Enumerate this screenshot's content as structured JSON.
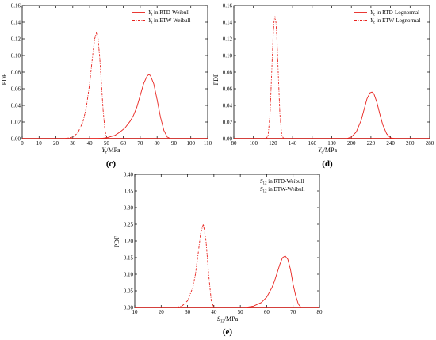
{
  "colors": {
    "series": "#e8231e",
    "axis": "#000000",
    "background": "#ffffff"
  },
  "panels": [
    {
      "label": "(c)"
    },
    {
      "label": "(d)"
    },
    {
      "label": "(e)"
    }
  ],
  "chart_data": [
    {
      "type": "line",
      "panel": "(c)",
      "ylabel": "PDF",
      "xlabel_main": "Y",
      "xlabel_sub": "t",
      "xlabel_unit": "/MPa",
      "xlim": [
        0,
        110
      ],
      "ylim": [
        0,
        0.16
      ],
      "xticks": [
        "0",
        "10",
        "20",
        "30",
        "40",
        "50",
        "60",
        "70",
        "80",
        "90",
        "100",
        "110"
      ],
      "yticks": [
        "0.00",
        "0.02",
        "0.04",
        "0.06",
        "0.08",
        "0.10",
        "0.12",
        "0.14",
        "0.16"
      ],
      "legend_position": "top-right",
      "series": [
        {
          "name_var": "Y",
          "name_sub": "t",
          "name_text": " in RTD-Weibull",
          "style": "solid",
          "x": [
            40,
            45,
            50,
            55,
            58,
            61,
            64,
            66,
            68,
            70,
            72,
            74,
            75,
            76,
            78,
            80,
            82,
            84,
            86,
            88
          ],
          "y": [
            0,
            0,
            0.001,
            0.004,
            0.008,
            0.013,
            0.021,
            0.028,
            0.038,
            0.052,
            0.066,
            0.075,
            0.077,
            0.076,
            0.066,
            0.047,
            0.026,
            0.01,
            0.002,
            0
          ]
        },
        {
          "name_var": "Y",
          "name_sub": "t",
          "name_text": " in ETW-Weibull",
          "style": "dash",
          "x": [
            25,
            30,
            33,
            36,
            38,
            40,
            41,
            42,
            43,
            44,
            45,
            46,
            47,
            48,
            49,
            50
          ],
          "y": [
            0,
            0.002,
            0.007,
            0.02,
            0.037,
            0.066,
            0.085,
            0.104,
            0.12,
            0.127,
            0.12,
            0.097,
            0.066,
            0.034,
            0.012,
            0
          ]
        }
      ]
    },
    {
      "type": "line",
      "panel": "(d)",
      "ylabel": "PDF",
      "xlabel_main": "Y",
      "xlabel_sub": "c",
      "xlabel_unit": "/MPa",
      "xlim": [
        80,
        280
      ],
      "ylim": [
        0,
        0.16
      ],
      "xticks": [
        "80",
        "100",
        "120",
        "140",
        "160",
        "180",
        "200",
        "220",
        "240",
        "260",
        "280"
      ],
      "yticks": [
        "0.00",
        "0.02",
        "0.04",
        "0.06",
        "0.08",
        "0.10",
        "0.12",
        "0.14",
        "0.16"
      ],
      "legend_position": "top-right",
      "series": [
        {
          "name_var": "Y",
          "name_sub": "c",
          "name_text": " in RTD-Lognormal",
          "style": "solid",
          "x": [
            195,
            200,
            205,
            210,
            213,
            216,
            219,
            221,
            223,
            226,
            229,
            232,
            236,
            240,
            245
          ],
          "y": [
            0,
            0.002,
            0.008,
            0.022,
            0.035,
            0.048,
            0.055,
            0.056,
            0.054,
            0.044,
            0.03,
            0.017,
            0.006,
            0.001,
            0
          ]
        },
        {
          "name_var": "Y",
          "name_sub": "c",
          "name_text": " in ETW-Lognormal",
          "style": "dash",
          "x": [
            113,
            115,
            117,
            119,
            120,
            121,
            122,
            123,
            124,
            125,
            127,
            129,
            131
          ],
          "y": [
            0,
            0.004,
            0.03,
            0.09,
            0.12,
            0.14,
            0.147,
            0.14,
            0.12,
            0.09,
            0.03,
            0.004,
            0
          ]
        }
      ]
    },
    {
      "type": "line",
      "panel": "(e)",
      "ylabel": "PDF",
      "xlabel_main": "S",
      "xlabel_sub": "12",
      "xlabel_unit": "/MPa",
      "xlim": [
        10,
        80
      ],
      "ylim": [
        0,
        0.4
      ],
      "xticks": [
        "10",
        "20",
        "30",
        "40",
        "50",
        "60",
        "70",
        "80"
      ],
      "yticks": [
        "0.00",
        "0.05",
        "0.10",
        "0.15",
        "0.20",
        "0.25",
        "0.30",
        "0.35",
        "0.40"
      ],
      "legend_position": "top-right",
      "series": [
        {
          "name_var": "S",
          "name_sub": "12",
          "name_text": " in RTD-Weibull",
          "style": "solid",
          "x": [
            52,
            55,
            58,
            60,
            62,
            63,
            64,
            65,
            66,
            67,
            68,
            69,
            70,
            71,
            72,
            73
          ],
          "y": [
            0,
            0.004,
            0.015,
            0.031,
            0.06,
            0.08,
            0.105,
            0.13,
            0.15,
            0.155,
            0.145,
            0.115,
            0.07,
            0.035,
            0.01,
            0
          ]
        },
        {
          "name_var": "S",
          "name_sub": "12",
          "name_text": " in ETW-Weibull",
          "style": "dash",
          "x": [
            26,
            28,
            30,
            32,
            33,
            34,
            35,
            36,
            37,
            38,
            39,
            40
          ],
          "y": [
            0,
            0.005,
            0.02,
            0.06,
            0.1,
            0.16,
            0.225,
            0.25,
            0.2,
            0.1,
            0.02,
            0
          ]
        }
      ]
    }
  ]
}
